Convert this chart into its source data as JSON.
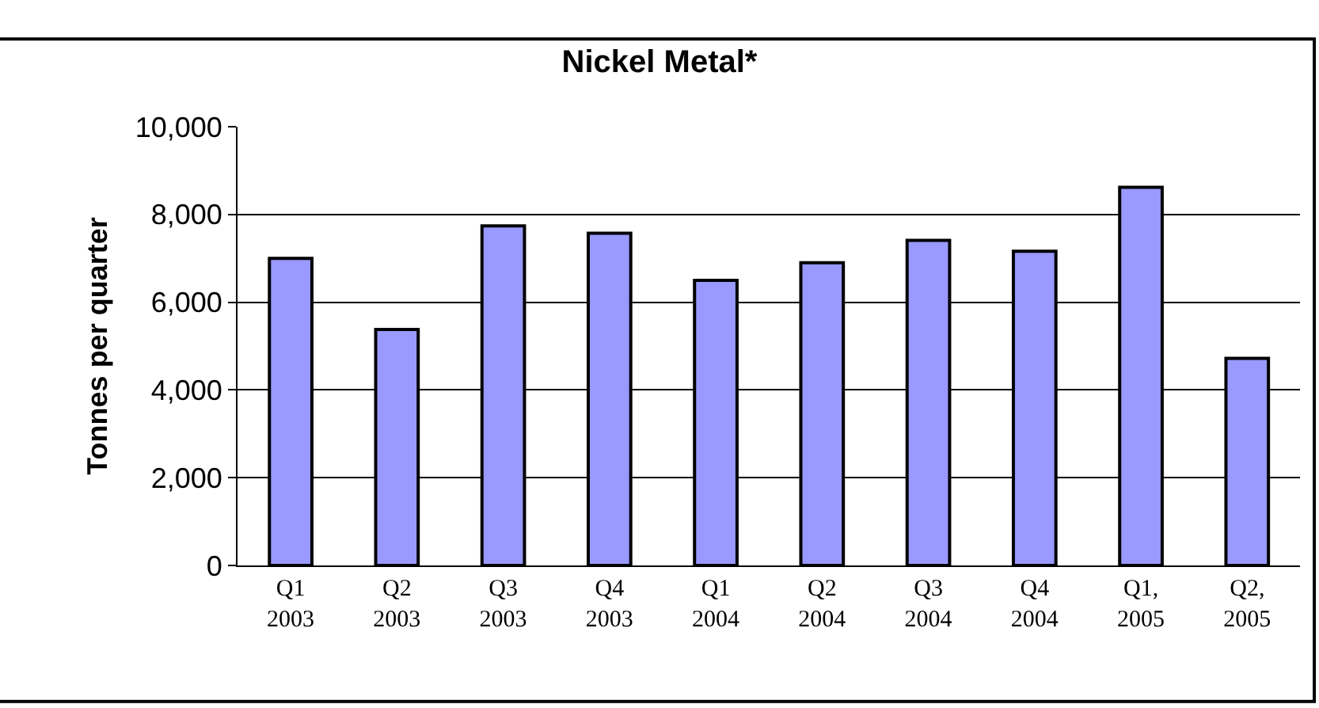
{
  "chart_data": {
    "type": "bar",
    "title": "Nickel Metal*",
    "ylabel": "Tonnes per quarter",
    "categories": [
      "Q1\n2003",
      "Q2\n2003",
      "Q3\n2003",
      "Q4\n2003",
      "Q1\n2004",
      "Q2\n2004",
      "Q3\n2004",
      "Q4\n2004",
      "Q1,\n2005",
      "Q2,\n2005"
    ],
    "values": [
      7000,
      5380,
      7740,
      7570,
      6500,
      6900,
      7410,
      7160,
      8620,
      4720
    ],
    "color": "#9999ff",
    "ylim": [
      0,
      10000
    ],
    "yticks": [
      {
        "value": 0,
        "label": "0"
      },
      {
        "value": 2000,
        "label": "2,000"
      },
      {
        "value": 4000,
        "label": "4,000"
      },
      {
        "value": 6000,
        "label": "6,000"
      },
      {
        "value": 8000,
        "label": "8,000"
      },
      {
        "value": 10000,
        "label": "10,000"
      }
    ],
    "grid": "y",
    "legend": false
  }
}
